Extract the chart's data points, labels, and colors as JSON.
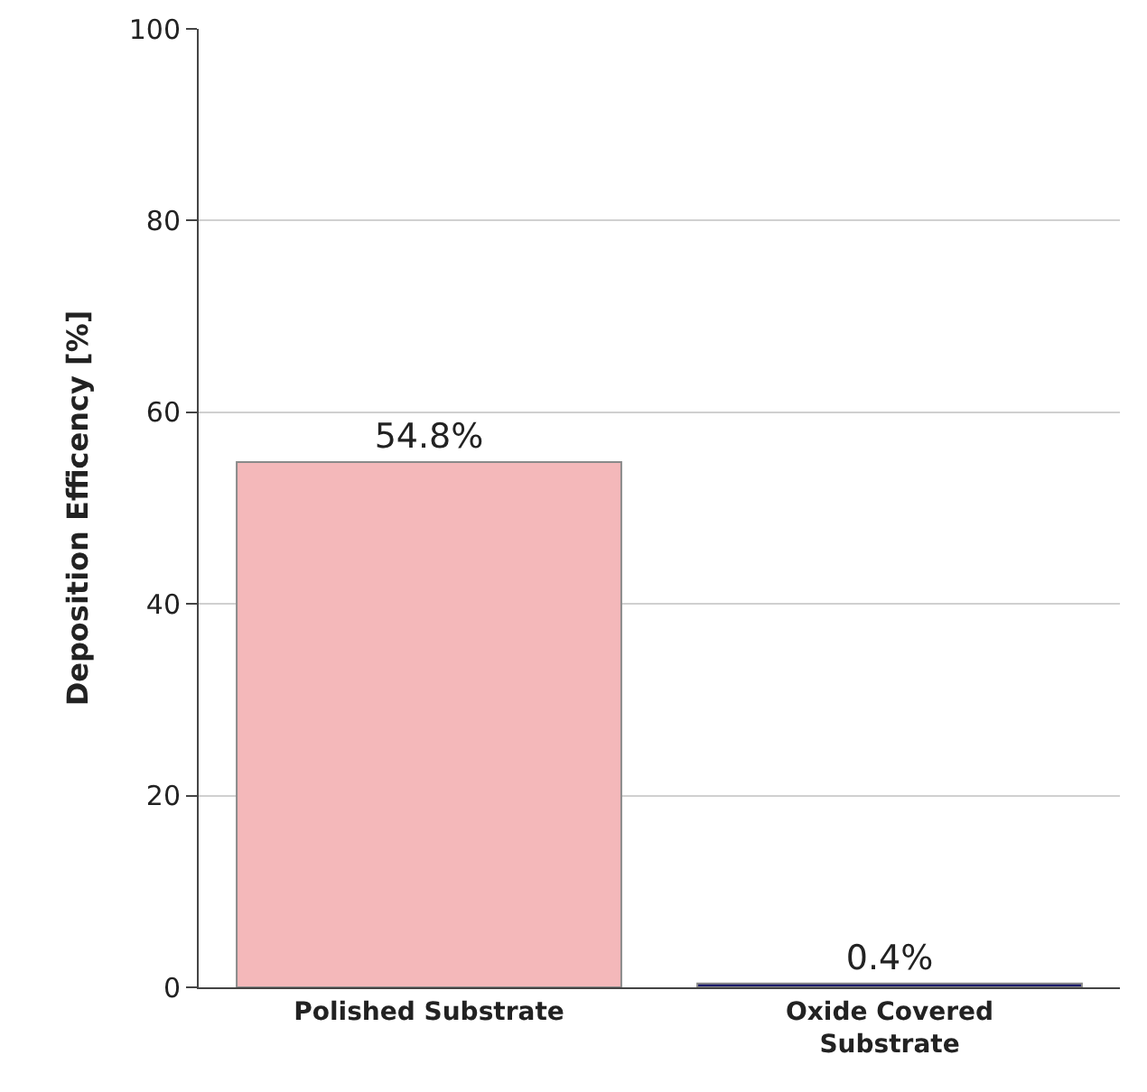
{
  "chart_data": {
    "type": "bar",
    "ylabel": "Deposition Efficency [%]",
    "categories": [
      "Polished Substrate",
      "Oxide Covered Substrate"
    ],
    "values": [
      54.8,
      0.4
    ],
    "colors": [
      "#f4b8ba",
      "#1c1c6b"
    ],
    "value_labels": [
      "54.8%",
      "0.4%"
    ],
    "ylim": [
      0,
      100
    ],
    "yticks": [
      0,
      20,
      40,
      60,
      80,
      100
    ],
    "grid": "y"
  }
}
